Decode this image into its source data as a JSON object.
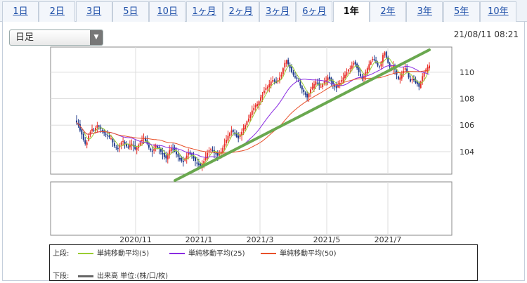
{
  "tabs": [
    {
      "label": "1日",
      "active": false
    },
    {
      "label": "2日",
      "active": false
    },
    {
      "label": "3日",
      "active": false
    },
    {
      "label": "5日",
      "active": false
    },
    {
      "label": "10日",
      "active": false
    },
    {
      "label": "1ヶ月",
      "active": false
    },
    {
      "label": "2ヶ月",
      "active": false
    },
    {
      "label": "3ヶ月",
      "active": false
    },
    {
      "label": "6ヶ月",
      "active": false
    },
    {
      "label": "1年",
      "active": true
    },
    {
      "label": "2年",
      "active": false
    },
    {
      "label": "3年",
      "active": false
    },
    {
      "label": "5年",
      "active": false
    },
    {
      "label": "10年",
      "active": false
    }
  ],
  "period_select": {
    "value": "日足"
  },
  "timestamp": "21/08/11 08:21",
  "legend": {
    "upper_label": "上段:",
    "lower_label": "下段:",
    "items": [
      {
        "label": "単純移動平均(5)",
        "color": "#9acd32"
      },
      {
        "label": "単純移動平均(25)",
        "color": "#8a2be2"
      },
      {
        "label": "単純移動平均(50)",
        "color": "#e8502a"
      }
    ],
    "volume": {
      "label": "出来高 単位:(株/口/枚)",
      "color": "#666666"
    }
  },
  "chart_data": {
    "type": "candlestick",
    "x_ticks": [
      "2020/11",
      "2021/1",
      "2021/3",
      "2021/5",
      "2021/7"
    ],
    "y_ticks": [
      104,
      106,
      108,
      110
    ],
    "ylim": [
      102.3,
      111.9
    ],
    "grid": true,
    "colors": {
      "up": "#e8302a",
      "down": "#1f3b8c",
      "trendline": "#6aa84f"
    },
    "closes": [
      106.2,
      106.0,
      105.6,
      105.3,
      104.9,
      104.6,
      104.7,
      105.2,
      105.5,
      105.7,
      105.6,
      105.8,
      106.0,
      105.9,
      105.7,
      105.5,
      105.4,
      105.3,
      105.2,
      105.1,
      105.0,
      104.7,
      104.4,
      104.3,
      104.2,
      104.5,
      104.7,
      104.8,
      104.6,
      104.4,
      104.3,
      104.5,
      104.6,
      104.4,
      104.2,
      104.3,
      104.5,
      104.7,
      104.9,
      105.0,
      104.8,
      104.6,
      104.3,
      104.1,
      104.0,
      104.2,
      104.5,
      104.3,
      104.2,
      104.0,
      103.8,
      103.6,
      103.5,
      103.8,
      104.1,
      104.3,
      104.2,
      104.0,
      103.8,
      103.6,
      103.4,
      103.3,
      103.2,
      103.5,
      103.7,
      103.9,
      103.8,
      103.7,
      103.5,
      103.3,
      103.1,
      103.0,
      102.9,
      103.1,
      103.3,
      103.6,
      103.9,
      104.1,
      104.2,
      104.1,
      103.9,
      103.8,
      103.7,
      103.8,
      104.0,
      104.3,
      104.6,
      104.9,
      105.2,
      105.4,
      105.6,
      105.5,
      105.3,
      105.1,
      105.0,
      105.3,
      105.5,
      105.8,
      106.0,
      106.3,
      106.5,
      106.8,
      107.1,
      107.3,
      107.5,
      107.6,
      107.8,
      108.1,
      108.3,
      108.6,
      108.8,
      108.9,
      109.1,
      109.3,
      109.4,
      109.3,
      109.2,
      109.4,
      109.6,
      109.8,
      110.3,
      110.7,
      110.9,
      110.6,
      110.3,
      110.0,
      109.8,
      109.6,
      109.5,
      109.3,
      109.0,
      108.7,
      108.5,
      108.3,
      108.1,
      108.4,
      108.7,
      108.9,
      109.1,
      109.3,
      109.2,
      109.0,
      108.9,
      109.1,
      109.3,
      109.4,
      109.6,
      109.5,
      109.3,
      109.1,
      108.9,
      108.8,
      109.0,
      109.2,
      109.4,
      109.6,
      109.8,
      110.0,
      110.2,
      110.3,
      110.5,
      110.7,
      110.6,
      110.3,
      110.0,
      109.7,
      109.5,
      109.7,
      110.0,
      110.3,
      110.6,
      110.8,
      111.0,
      110.9,
      110.7,
      110.5,
      110.4,
      110.8,
      111.3,
      111.5,
      111.1,
      110.7,
      110.4,
      110.3,
      110.5,
      110.2,
      109.8,
      109.5,
      109.6,
      109.9,
      110.1,
      110.3,
      110.0,
      109.6,
      109.3,
      109.5,
      109.4,
      109.2,
      109.1,
      108.9,
      109.3,
      109.7,
      110.0,
      110.2,
      110.4,
      110.5
    ]
  }
}
